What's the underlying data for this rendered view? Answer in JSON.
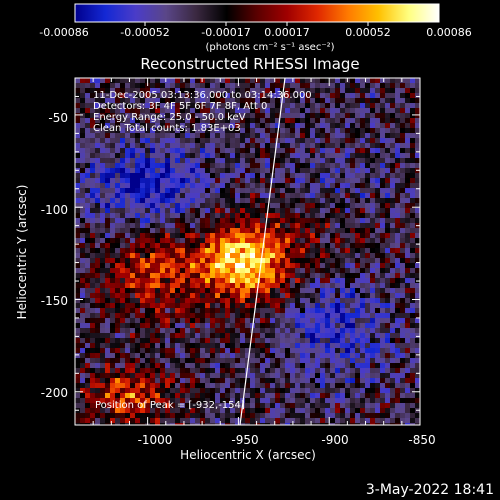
{
  "colorbar": {
    "tick_labels": [
      "-0.00086",
      "-0.00052",
      "-0.00017",
      "0.00017",
      "0.00052",
      "0.00086"
    ],
    "unit_label": "(photons cm⁻² s⁻¹ asec⁻²)",
    "colormap": [
      "#00008c",
      "#1428d4",
      "#4a3cc8",
      "#5a4688",
      "#3a2840",
      "#000000",
      "#5a0000",
      "#a00000",
      "#e02800",
      "#ff7a00",
      "#ffc000",
      "#ffff80",
      "#ffffff"
    ]
  },
  "image": {
    "title": "Reconstructed RHESSI Image",
    "info_lines": [
      "11-Dec-2005 03:13:36.000 to 03:14:36.000",
      "Detectors: 3F 4F 5F 6F 7F 8F, Att 0",
      "Energy Range: 25.0 - 50.0 keV",
      "Clean     Total counts: 1.83E+03"
    ],
    "peak_label": "Position of Peak = [-932,-154]",
    "xlabel": "Heliocentric X (arcsec)",
    "ylabel": "Heliocentric Y (arcsec)",
    "x_ticks": [
      "-1000",
      "-950",
      "-900",
      "-850"
    ],
    "y_ticks": [
      "-50",
      "-100",
      "-150",
      "-200"
    ],
    "xlim": [
      -1040,
      -850
    ],
    "ylim": [
      -218,
      -30
    ]
  },
  "footer": {
    "date_stamp": "3-May-2022 18:41"
  }
}
